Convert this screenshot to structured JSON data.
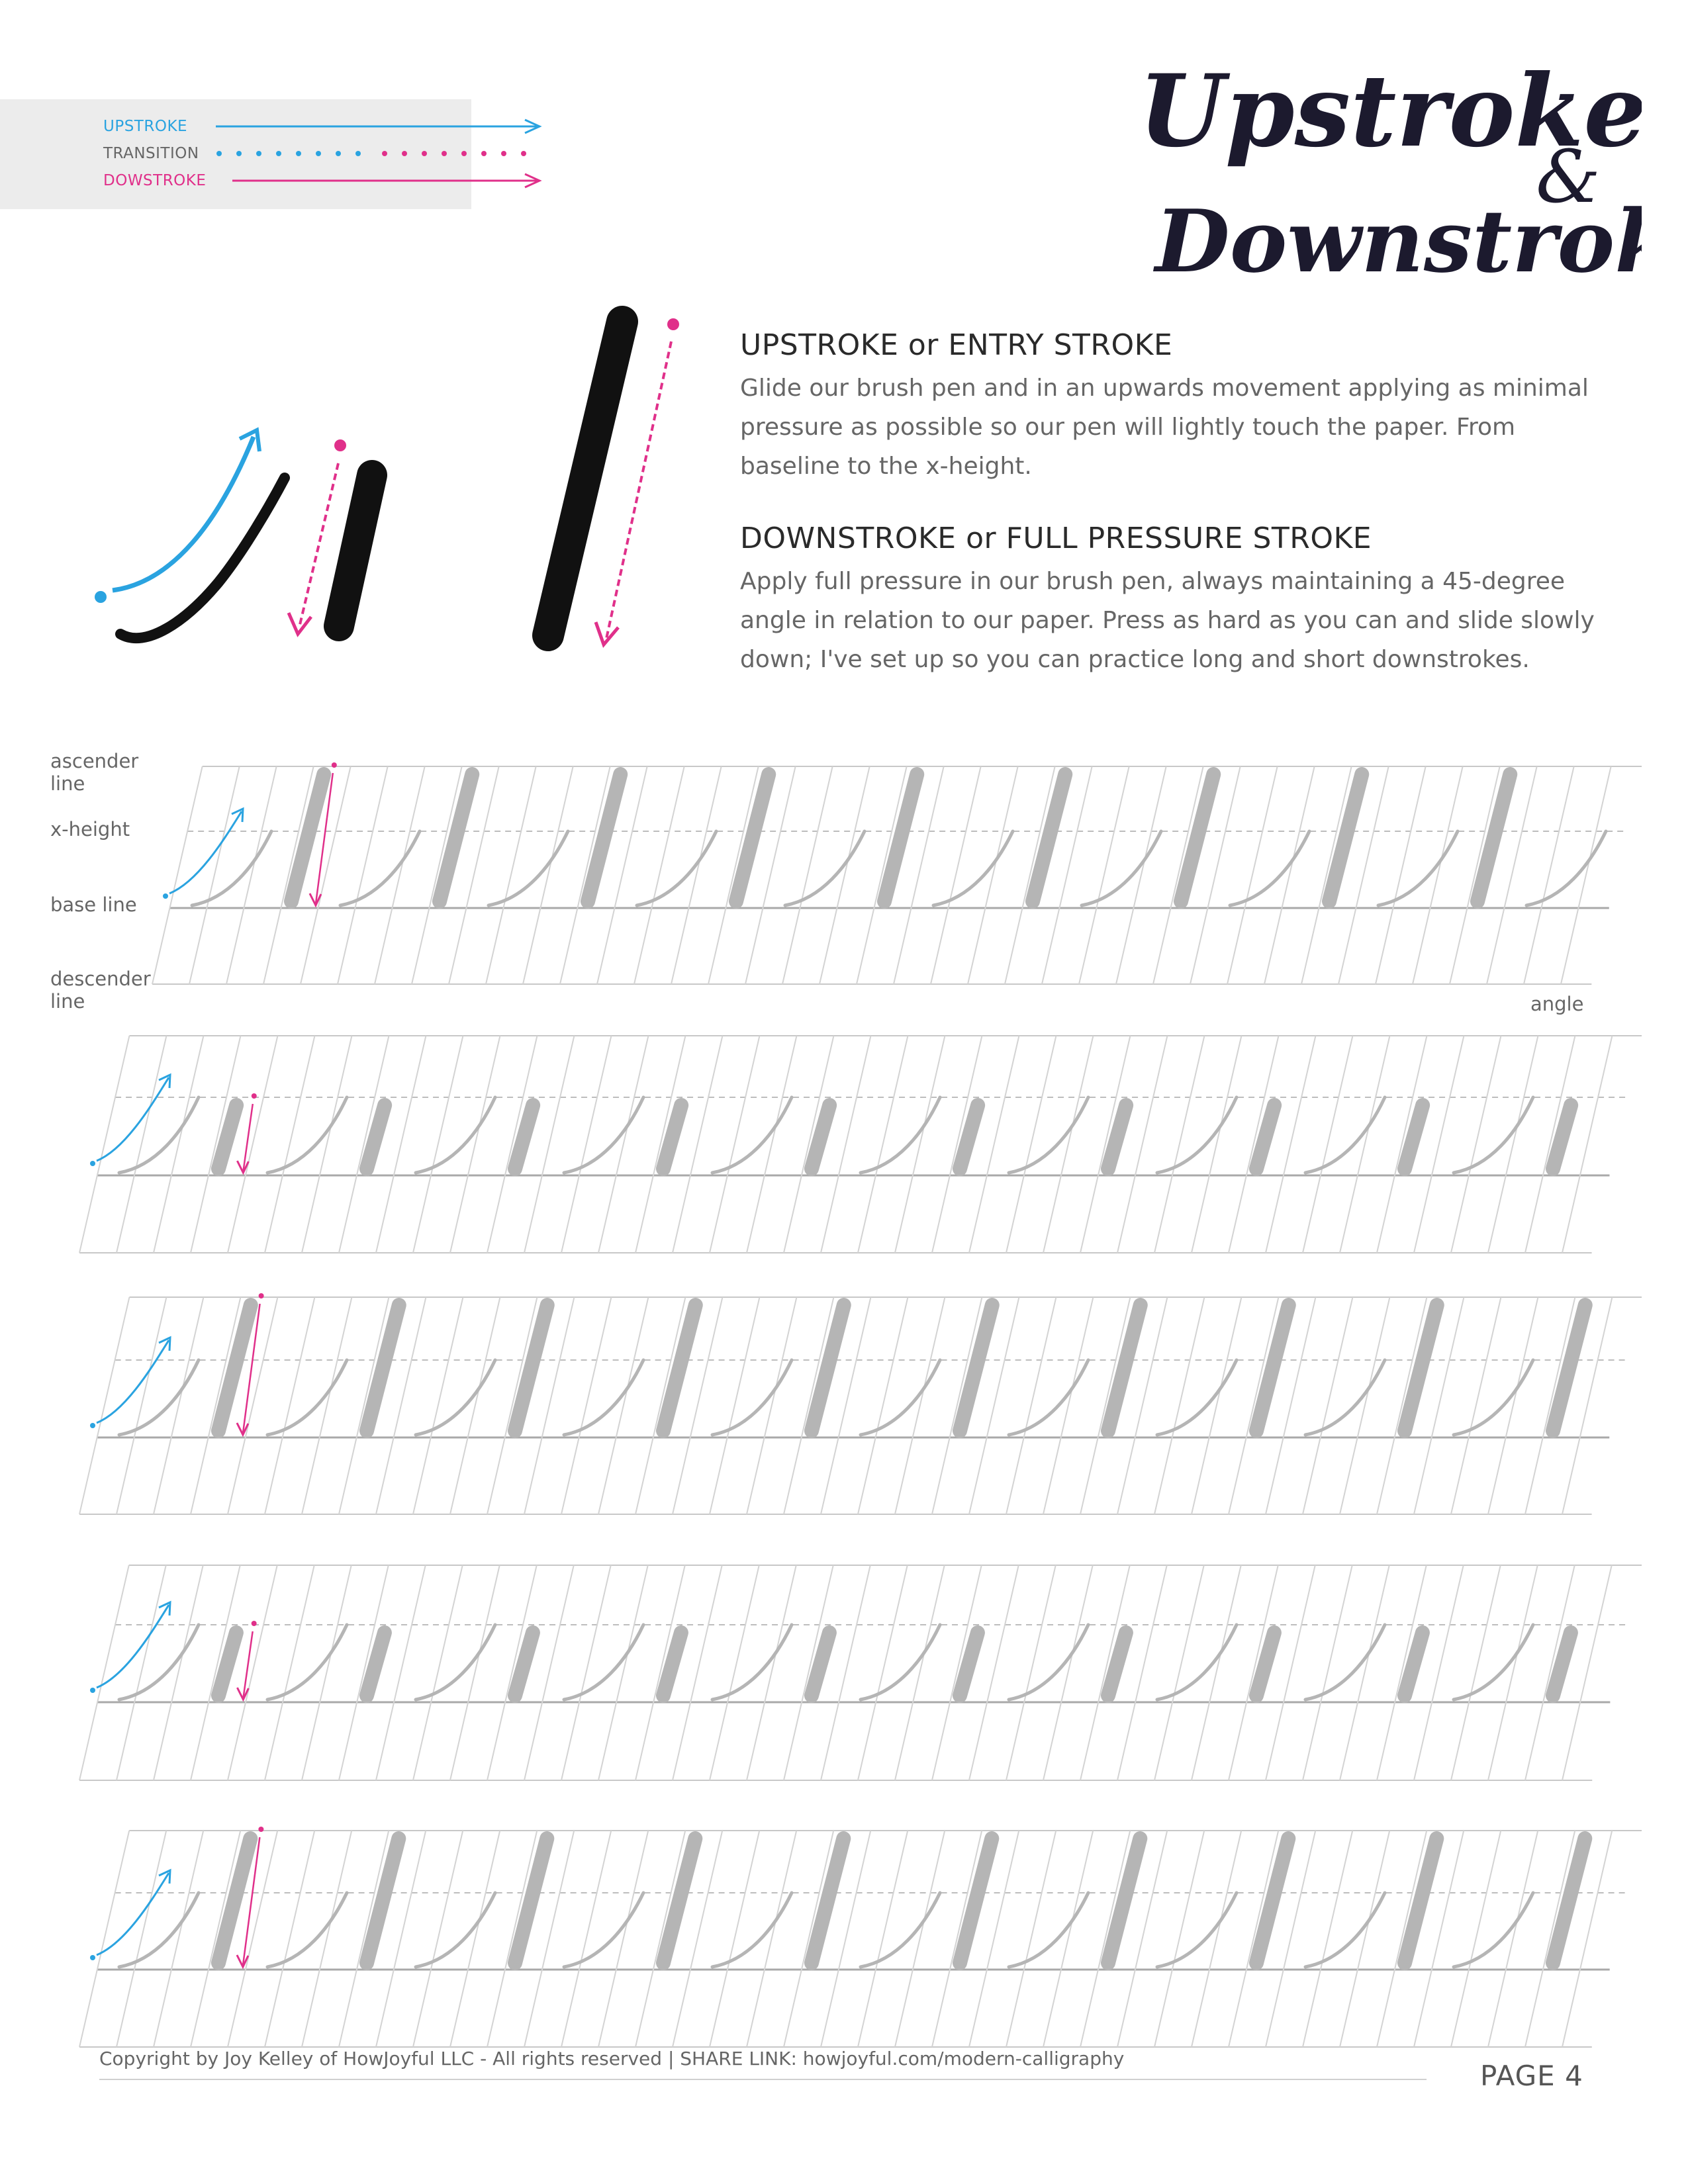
{
  "legend": {
    "upstroke": "UPSTROKE",
    "transition": "TRANSITION",
    "downstroke": "DOWSTROKE"
  },
  "title": {
    "line1": "Upstroke",
    "amp": "&",
    "line2": "Downstroke"
  },
  "upstroke_section": {
    "heading": "UPSTROKE or ENTRY STROKE",
    "text": "Glide our brush pen and in an upwards movement applying as minimal pressure as possible so our pen will lightly touch the paper. From baseline to the x-height."
  },
  "downstroke_section": {
    "heading": "DOWNSTROKE or FULL PRESSURE STROKE",
    "text": "Apply full pressure in our brush pen, always maintaining a 45-degree angle in relation to our paper. Press as hard as you can and slide slowly down; I've set up so you can practice long and short downstrokes."
  },
  "guide_labels": {
    "ascender": "ascender line",
    "xheight": "x-height",
    "baseline": "base line",
    "descender": "descender line",
    "angle": "angle"
  },
  "footer": {
    "copyright": "Copyright by Joy Kelley of HowJoyful LLC - All rights reserved  |  SHARE LINK: howjoyful.com/modern-calligraphy",
    "page": "PAGE 4"
  },
  "colors": {
    "upstroke": "#2aa3e0",
    "downstroke": "#e0308a",
    "stroke_dark": "#111111",
    "guide_gray": "#b5b5b5"
  }
}
